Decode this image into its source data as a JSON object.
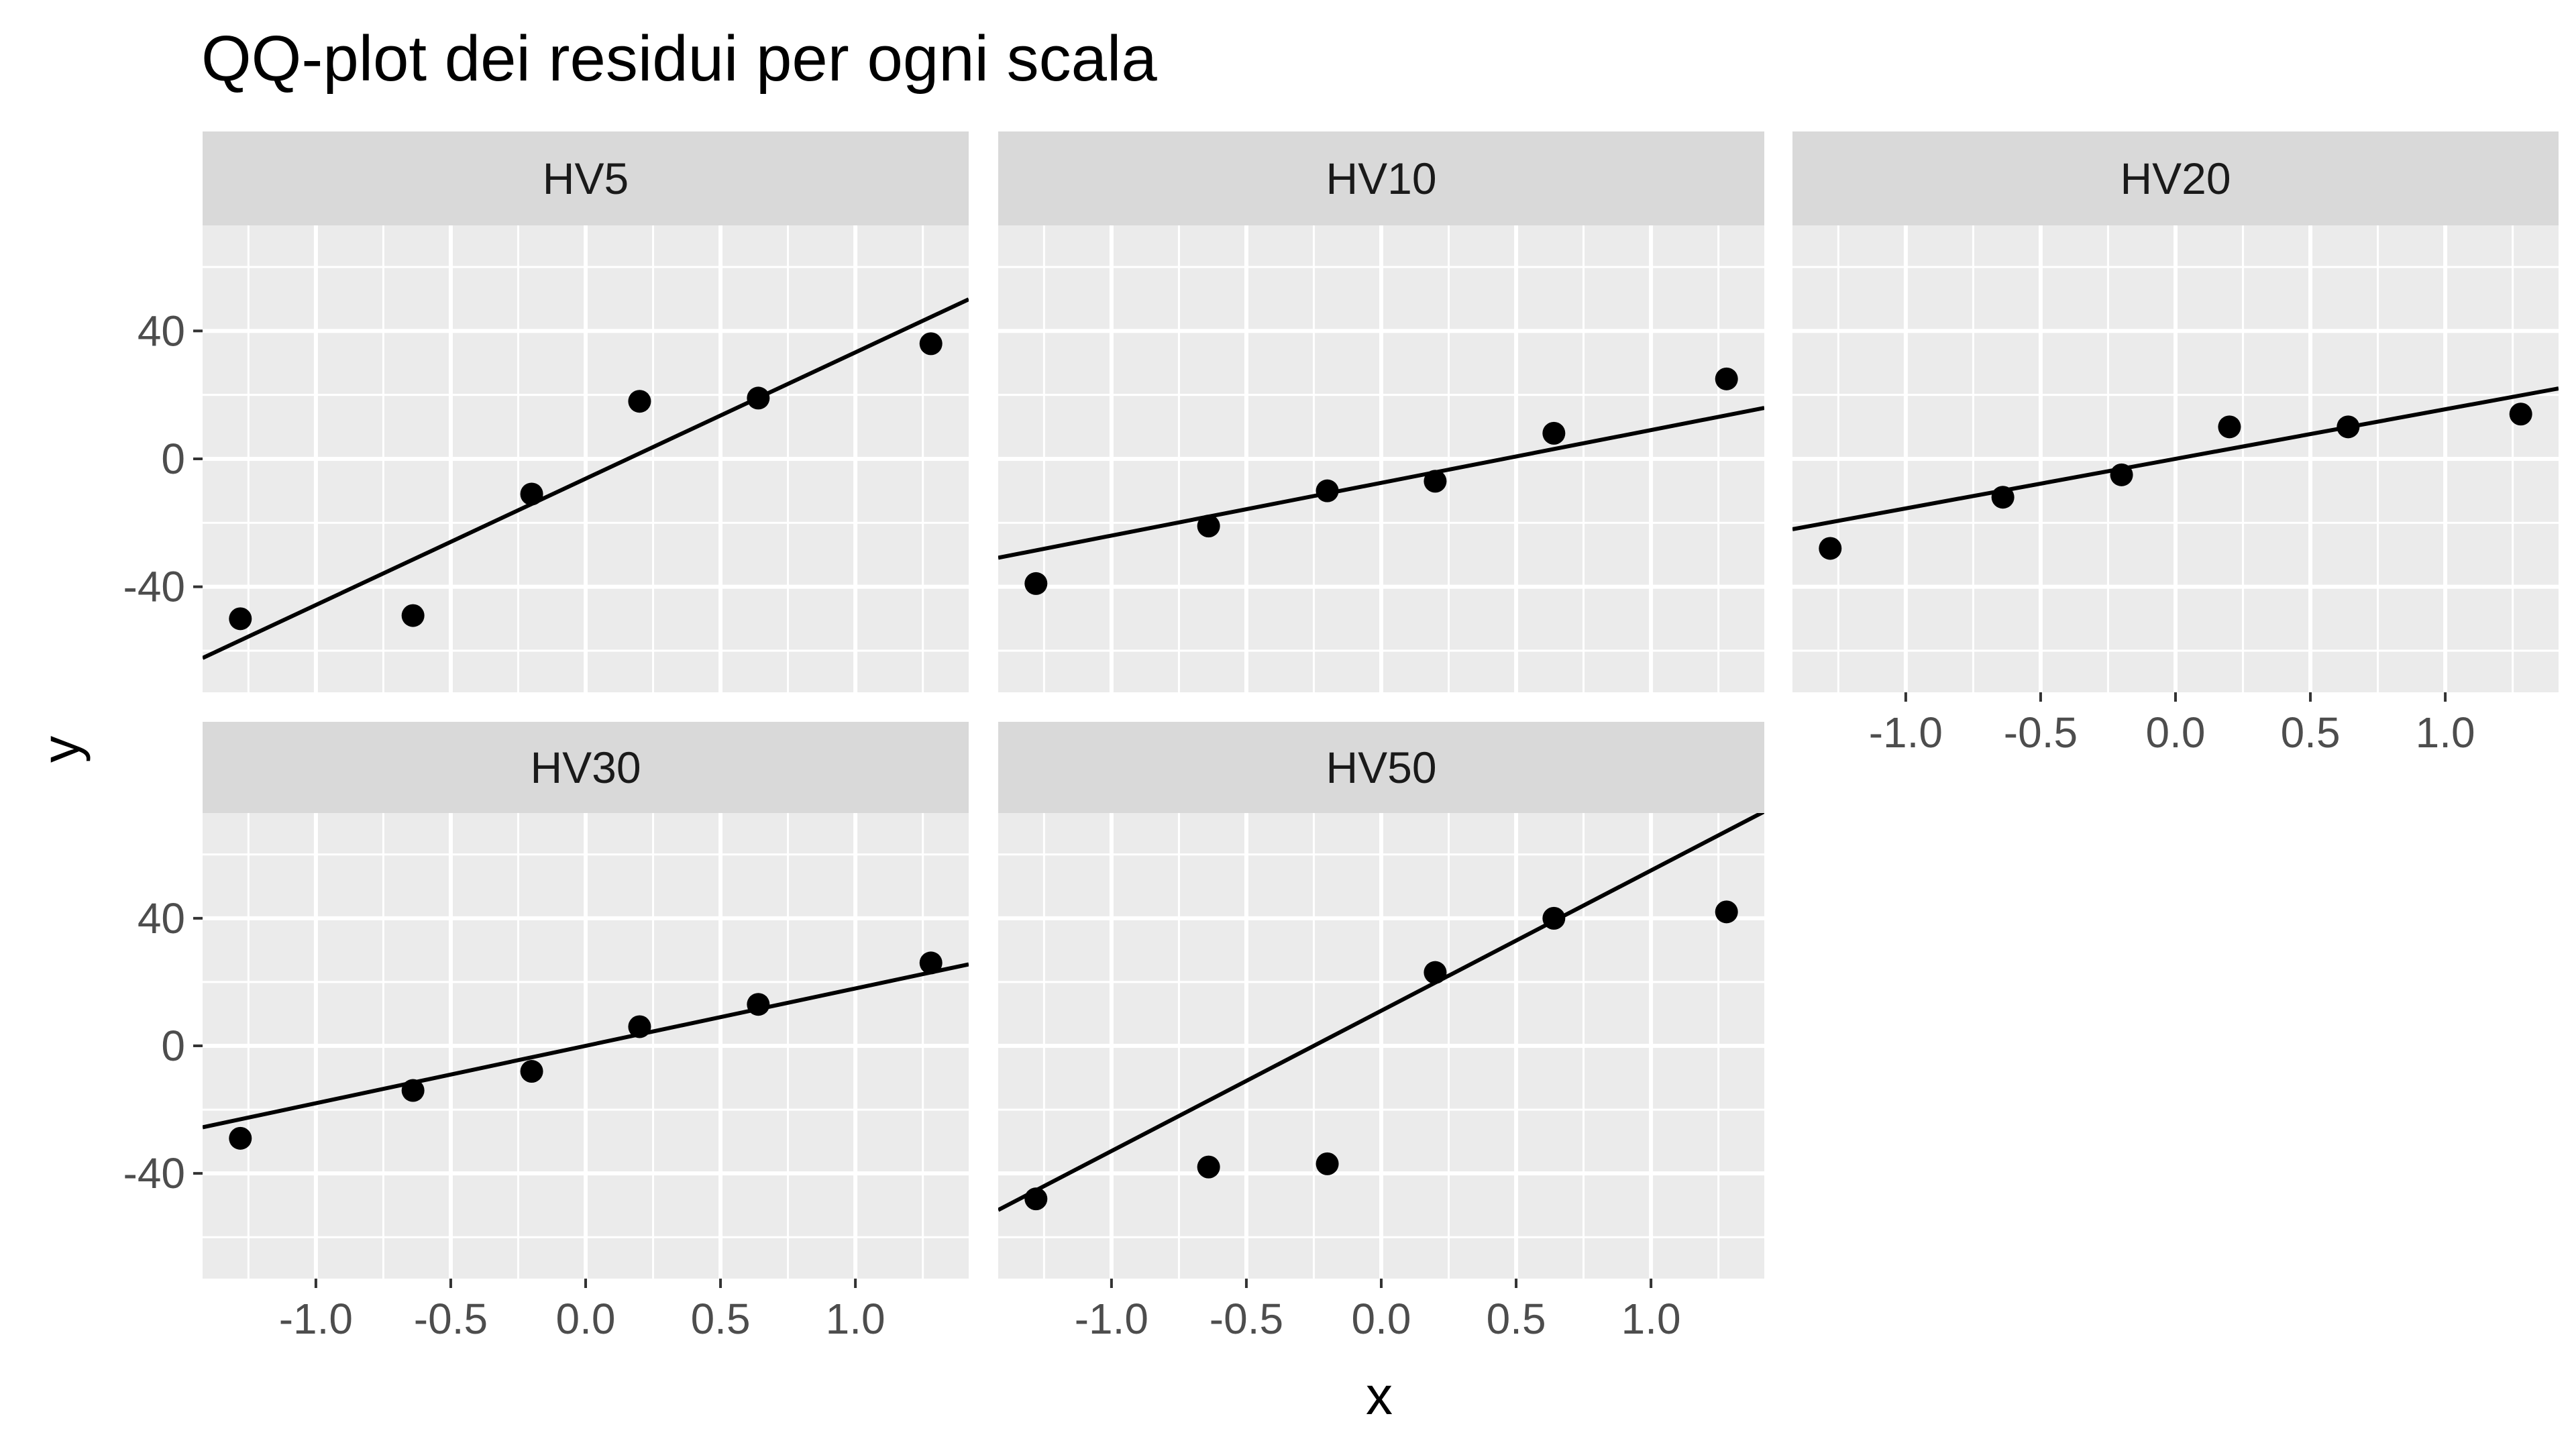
{
  "title": "QQ-plot dei residui per ogni scala",
  "colors": {
    "panel_bg": "#ebebeb",
    "strip_bg": "#d9d9d9",
    "grid": "#ffffff",
    "point": "#000000",
    "line": "#000000",
    "tick_text": "#4d4d4d"
  },
  "chart_data": {
    "type": "scatter",
    "title": "QQ-plot dei residui per ogni scala",
    "xlabel": "x",
    "ylabel": "y",
    "xlim": [
      -1.42,
      1.42
    ],
    "ylim": [
      -73,
      73
    ],
    "x_ticks": [
      -1.0,
      -0.5,
      0.0,
      0.5,
      1.0
    ],
    "x_tick_labels": [
      "-1.0",
      "-0.5",
      "0.0",
      "0.5",
      "1.0"
    ],
    "y_ticks": [
      -40,
      0,
      40
    ],
    "y_tick_labels": [
      "-40",
      "0",
      "40"
    ],
    "grid": true,
    "facets": [
      {
        "name": "HV5",
        "x": [
          -1.28,
          -0.64,
          -0.2,
          0.2,
          0.64,
          1.28
        ],
        "y": [
          -50,
          -49,
          -11,
          18,
          19,
          36
        ],
        "line": {
          "intercept": -6.2,
          "slope": 39.5
        }
      },
      {
        "name": "HV10",
        "x": [
          -1.28,
          -0.64,
          -0.2,
          0.2,
          0.64,
          1.28
        ],
        "y": [
          -39,
          -21,
          -10,
          -7,
          8,
          25
        ],
        "line": {
          "intercept": -7.5,
          "slope": 16.5
        }
      },
      {
        "name": "HV20",
        "x": [
          -1.28,
          -0.64,
          -0.2,
          0.2,
          0.64,
          1.28
        ],
        "y": [
          -28,
          -12,
          -5,
          10,
          10,
          14
        ],
        "line": {
          "intercept": 0,
          "slope": 15.5
        }
      },
      {
        "name": "HV30",
        "x": [
          -1.28,
          -0.64,
          -0.2,
          0.2,
          0.64,
          1.28
        ],
        "y": [
          -29,
          -14,
          -8,
          6,
          13,
          26
        ],
        "line": {
          "intercept": 0,
          "slope": 18
        }
      },
      {
        "name": "HV50",
        "x": [
          -1.28,
          -0.64,
          -0.2,
          0.2,
          0.64,
          1.28
        ],
        "y": [
          -48,
          -38,
          -37,
          23,
          40,
          42
        ],
        "line": {
          "intercept": 11,
          "slope": 44
        }
      }
    ]
  }
}
